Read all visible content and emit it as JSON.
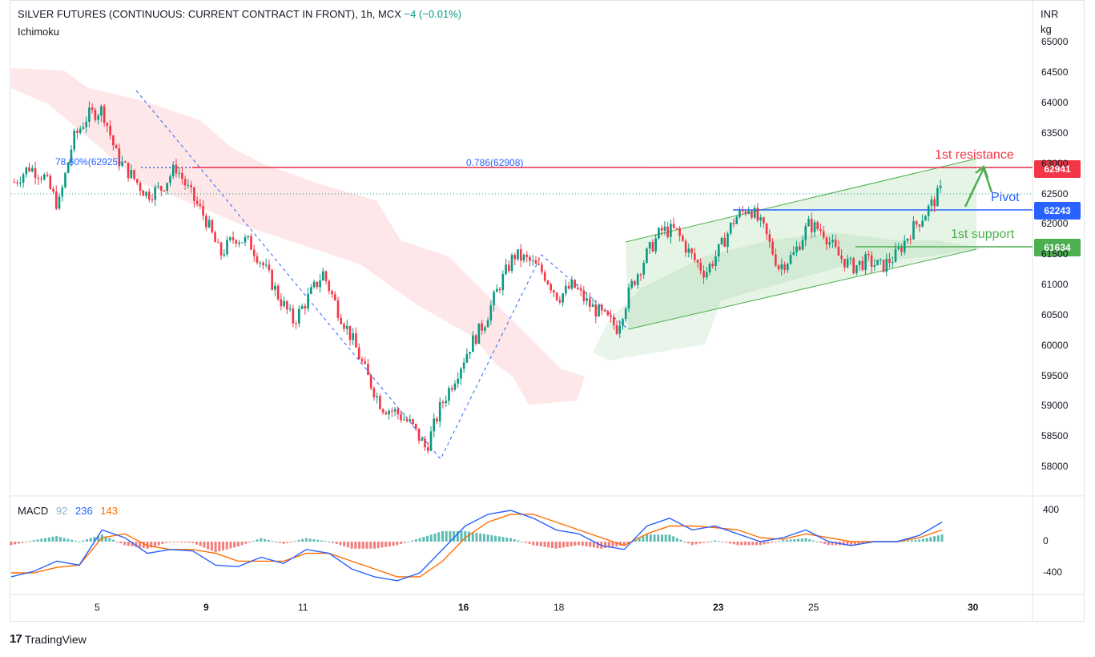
{
  "header": {
    "symbol": "SILVER FUTURES (CONTINUOUS: CURRENT CONTRACT IN FRONT), 1h, MCX",
    "change": "−4 (−0.01%)",
    "indicator": "Ichimoku"
  },
  "currency": {
    "unit": "INR",
    "qty": "kg"
  },
  "brand": {
    "logo": "17",
    "name": "TradingView"
  },
  "colors": {
    "up": "#089981",
    "down": "#f23645",
    "resistance": "#f23645",
    "pivot": "#2962ff",
    "support": "#4caf50",
    "macd": "#2962ff",
    "signal": "#ff6d00"
  },
  "annotations": {
    "resistance_label": "1st resistance",
    "pivot_label": "Pivot",
    "support_label": "1st support",
    "fib_left": "78.60%(62925)",
    "fib_right": "0.786(62908)"
  },
  "price_tags": {
    "resistance": "62941",
    "pivot": "62243",
    "support": "61634"
  },
  "macd_legend": {
    "name": "MACD",
    "fast": "92",
    "slow": "236",
    "signal": "143"
  },
  "chart_data": [
    {
      "type": "candlestick",
      "title": "SILVER FUTURES (CONTINUOUS: CURRENT CONTRACT IN FRONT), 1h, MCX",
      "y_ticks": [
        "65000",
        "64500",
        "64000",
        "63500",
        "63000",
        "62500",
        "62000",
        "61500",
        "61000",
        "60500",
        "60000",
        "59500",
        "59000",
        "58500",
        "58000"
      ],
      "x_ticks": [
        "5",
        "9",
        "11",
        "16",
        "18",
        "23",
        "25",
        "30"
      ],
      "ylim": [
        57700,
        65100
      ],
      "grid": false,
      "levels": {
        "resistance": 62941,
        "pivot": 62243,
        "support": 61634,
        "fib": 62908
      },
      "close_path": [
        62700,
        62950,
        62800,
        62300,
        63400,
        63800,
        63900,
        63100,
        62800,
        62500,
        62600,
        62950,
        62500,
        62100,
        61500,
        61800,
        61700,
        61300,
        60800,
        60400,
        60800,
        61200,
        60600,
        60100,
        59500,
        59000,
        58900,
        58700,
        58300,
        59000,
        59500,
        60000,
        60400,
        61000,
        61500,
        61400,
        61200,
        60800,
        61000,
        60700,
        60500,
        60300,
        61000,
        61500,
        61900,
        61900,
        61500,
        61200,
        61600,
        62100,
        62300,
        61900,
        61300,
        61500,
        62000,
        61900,
        61500,
        61300,
        61400,
        61300,
        61500,
        61900,
        62200,
        62550
      ]
    },
    {
      "type": "line",
      "title": "MACD",
      "y_ticks": [
        "400",
        "0",
        "-400"
      ],
      "series": [
        {
          "name": "MACD",
          "values": [
            -450,
            -380,
            -250,
            -300,
            150,
            50,
            -150,
            -100,
            -120,
            -300,
            -320,
            -200,
            -280,
            -100,
            -150,
            -350,
            -450,
            -500,
            -400,
            -100,
            200,
            350,
            400,
            300,
            150,
            100,
            -50,
            -100,
            200,
            300,
            150,
            200,
            100,
            0,
            50,
            150,
            0,
            -50,
            0,
            0,
            80,
            250
          ]
        },
        {
          "name": "signal",
          "values": [
            -400,
            -400,
            -330,
            -300,
            50,
            100,
            -50,
            -100,
            -100,
            -150,
            -250,
            -250,
            -250,
            -150,
            -150,
            -250,
            -350,
            -450,
            -450,
            -250,
            50,
            250,
            350,
            350,
            250,
            150,
            50,
            -50,
            100,
            200,
            200,
            180,
            150,
            50,
            30,
            100,
            50,
            0,
            0,
            0,
            50,
            150
          ]
        }
      ]
    }
  ]
}
